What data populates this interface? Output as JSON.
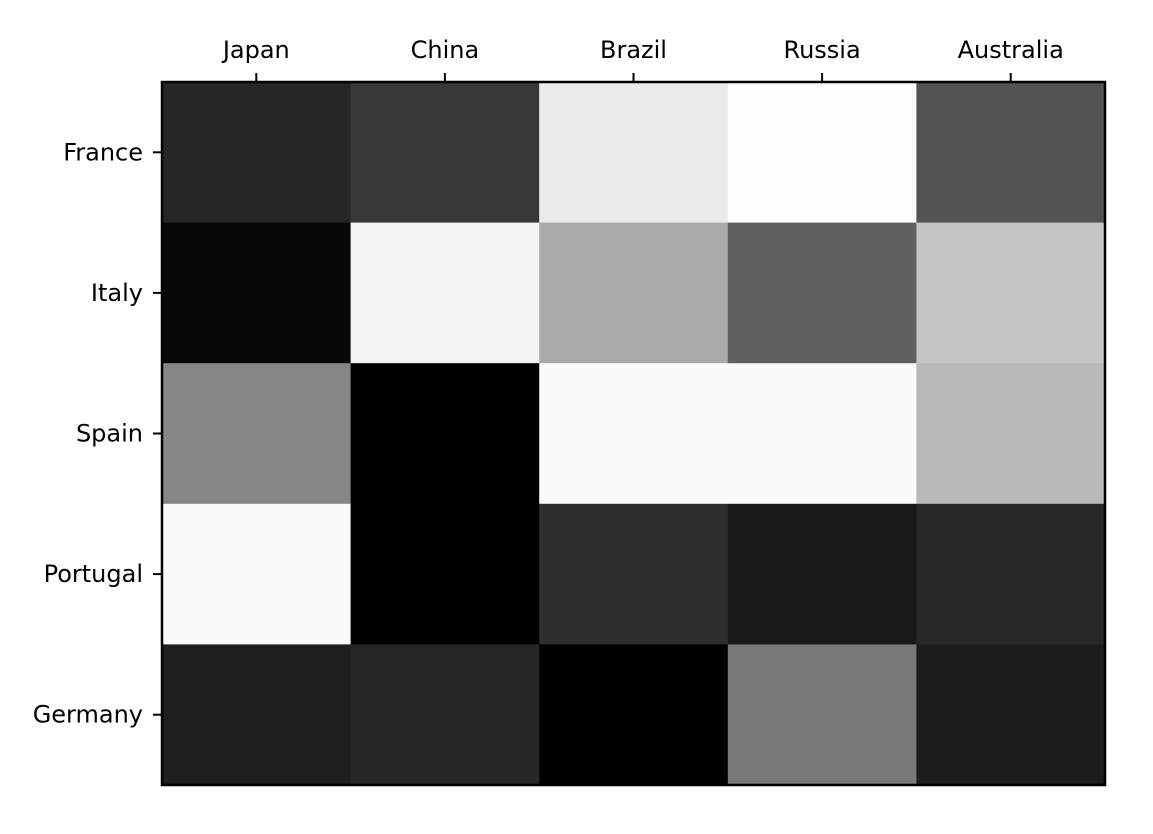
{
  "chart_data": {
    "type": "heatmap",
    "colormap": "grayscale",
    "x_categories": [
      "Japan",
      "China",
      "Brazil",
      "Russia",
      "Australia"
    ],
    "y_categories": [
      "France",
      "Italy",
      "Spain",
      "Portugal",
      "Germany"
    ],
    "x_axis_position": "top",
    "grid": false,
    "legend": "none",
    "values": [
      [
        0.15,
        0.22,
        0.93,
        1.0,
        0.33
      ],
      [
        0.03,
        0.96,
        0.67,
        0.38,
        0.78
      ],
      [
        0.53,
        0.0,
        0.99,
        0.99,
        0.73
      ],
      [
        0.99,
        0.0,
        0.18,
        0.1,
        0.16
      ],
      [
        0.12,
        0.15,
        0.0,
        0.48,
        0.11
      ]
    ]
  }
}
